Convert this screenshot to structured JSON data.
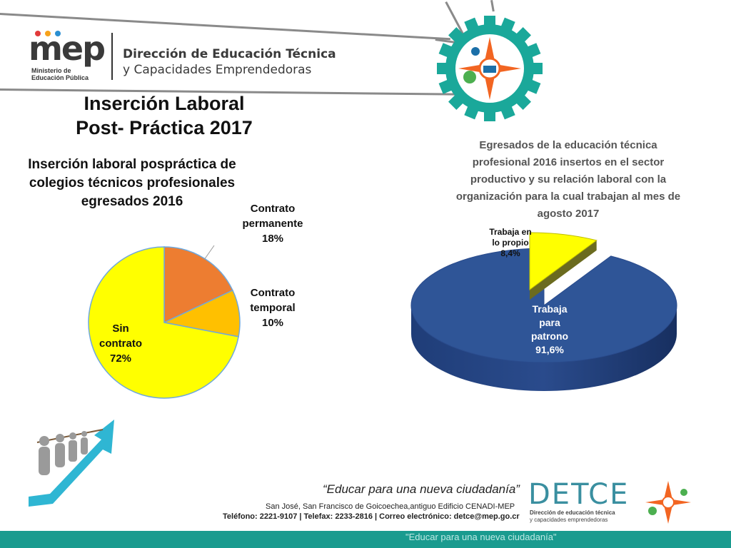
{
  "header": {
    "logo_word": "mep",
    "logo_sub_line1": "Ministerio de",
    "logo_sub_line2": "Educación Pública",
    "org_line1": "Dirección de Educación Técnica",
    "org_line2": "y Capacidades Emprendedoras"
  },
  "main_title": {
    "line1": "Inserción Laboral",
    "line2": "Post- Práctica 2017"
  },
  "left_chart_title": {
    "line1": "Inserción laboral pospráctica de",
    "line2": "colegios técnicos profesionales",
    "line3": "egresados 2016"
  },
  "right_chart_title": {
    "line1": "Egresados de la educación técnica",
    "line2": "profesional 2016 insertos en el sector",
    "line3": "productivo y su relación laboral con la",
    "line4": "organización para la cual trabajan al mes de",
    "line5": "agosto 2017"
  },
  "chart_data": [
    {
      "type": "pie",
      "categories": [
        "Contrato permanente",
        "Contrato temporal",
        "Sin contrato"
      ],
      "values": [
        18,
        10,
        72
      ],
      "unit": "%",
      "colors": [
        "#ed7d31",
        "#ffc000",
        "#ffff00"
      ],
      "labels": {
        "permanente": {
          "line1": "Contrato",
          "line2": "permanente",
          "line3": "18%"
        },
        "temporal": {
          "line1": "Contrato",
          "line2": "temporal",
          "line3": "10%"
        },
        "sin": {
          "line1": "Sin",
          "line2": "contrato",
          "line3": "72%"
        }
      }
    },
    {
      "type": "pie",
      "categories": [
        "Trabaja en lo propio",
        "Trabaja para patrono"
      ],
      "values": [
        8.4,
        91.6
      ],
      "unit": "%",
      "colors": [
        "#ffff00",
        "#2f5597"
      ],
      "labels": {
        "propio": {
          "line1": "Trabaja en",
          "line2": "lo propio",
          "line3": "8,4%"
        },
        "patrono": {
          "line1": "Trabaja",
          "line2": "para",
          "line3": "patrono",
          "line4": "91,6%"
        }
      }
    }
  ],
  "footer": {
    "quote": "“Educar para una nueva ciudadanía”",
    "address": "San José, San Francisco de Goicoechea,antiguo Edificio CENADI-MEP",
    "contact": "Teléfono: 2221-9107 | Telefax: 2233-2816 | Correo electrónico: detce@mep.go.cr",
    "detce_word": "DETCE",
    "detce_sub1": "Dirección de educación técnica",
    "detce_sub2": "y capacidades emprendedoras",
    "bar_text": "\"Educar para una nueva ciudadanía\""
  },
  "colors": {
    "teal": "#1a9b8f",
    "emblem_gear": "#1aa89a",
    "emblem_orange": "#f26522"
  }
}
